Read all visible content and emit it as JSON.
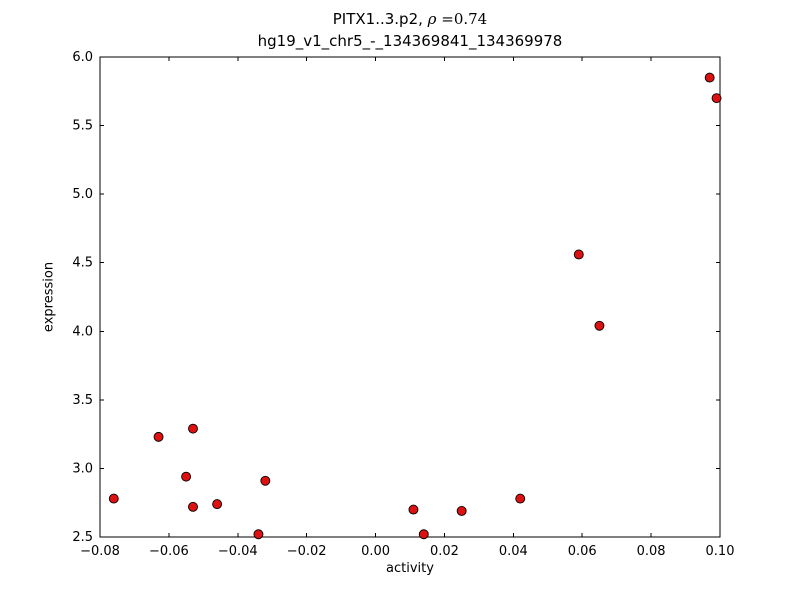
{
  "chart_data": {
    "type": "scatter",
    "title_main": "PITX1..3.p2, ",
    "title_math_rho": "ρ",
    "title_math_eq": " =0.74",
    "subtitle": "hg19_v1_chr5_-_134369841_134369978",
    "xlabel": "activity",
    "ylabel": "expression",
    "xlim": [
      -0.08,
      0.1
    ],
    "ylim": [
      2.5,
      6.0
    ],
    "xticks": [
      -0.08,
      -0.06,
      -0.04,
      -0.02,
      0.0,
      0.02,
      0.04,
      0.06,
      0.08,
      0.1
    ],
    "xtick_labels": [
      "−0.08",
      "−0.06",
      "−0.04",
      "−0.02",
      "0.00",
      "0.02",
      "0.04",
      "0.06",
      "0.08",
      "0.10"
    ],
    "yticks": [
      2.5,
      3.0,
      3.5,
      4.0,
      4.5,
      5.0,
      5.5,
      6.0
    ],
    "ytick_labels": [
      "2.5",
      "3.0",
      "3.5",
      "4.0",
      "4.5",
      "5.0",
      "5.5",
      "6.0"
    ],
    "grid": false,
    "legend": null,
    "marker": {
      "shape": "circle",
      "color": "#dd1111",
      "edge": "#000000",
      "size": 4.5
    },
    "points": [
      {
        "x": -0.076,
        "y": 2.78
      },
      {
        "x": -0.063,
        "y": 3.23
      },
      {
        "x": -0.055,
        "y": 2.94
      },
      {
        "x": -0.053,
        "y": 3.29
      },
      {
        "x": -0.053,
        "y": 2.72
      },
      {
        "x": -0.046,
        "y": 2.74
      },
      {
        "x": -0.034,
        "y": 2.52
      },
      {
        "x": -0.032,
        "y": 2.91
      },
      {
        "x": 0.011,
        "y": 2.7
      },
      {
        "x": 0.014,
        "y": 2.52
      },
      {
        "x": 0.025,
        "y": 2.69
      },
      {
        "x": 0.042,
        "y": 2.78
      },
      {
        "x": 0.059,
        "y": 4.56
      },
      {
        "x": 0.065,
        "y": 4.04
      },
      {
        "x": 0.097,
        "y": 5.85
      },
      {
        "x": 0.099,
        "y": 5.7
      }
    ]
  }
}
